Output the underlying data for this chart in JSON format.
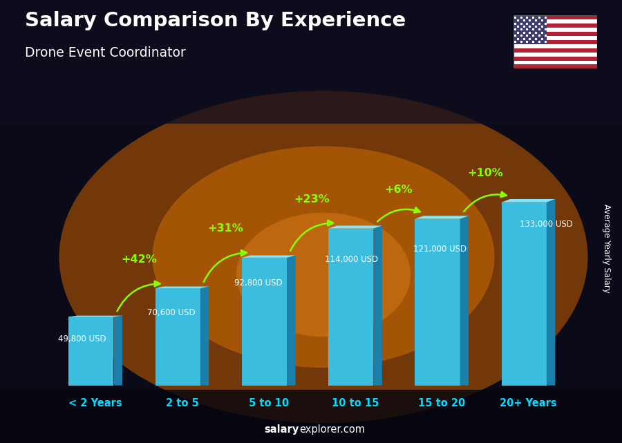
{
  "title": "Salary Comparison By Experience",
  "subtitle": "Drone Event Coordinator",
  "categories": [
    "< 2 Years",
    "2 to 5",
    "5 to 10",
    "10 to 15",
    "15 to 20",
    "20+ Years"
  ],
  "values": [
    49800,
    70600,
    92800,
    114000,
    121000,
    133000
  ],
  "labels": [
    "49,800 USD",
    "70,600 USD",
    "92,800 USD",
    "114,000 USD",
    "121,000 USD",
    "133,000 USD"
  ],
  "pct_changes": [
    "+42%",
    "+31%",
    "+23%",
    "+6%",
    "+10%"
  ],
  "bar_front_color": "#3BBDE0",
  "bar_top_color": "#7DE8FF",
  "bar_side_color": "#1A7FAA",
  "pct_color": "#88FF00",
  "arrow_color": "#88FF00",
  "title_color": "#FFFFFF",
  "subtitle_color": "#FFFFFF",
  "label_color": "#CCFFFF",
  "xlabel_color": "#00DDFF",
  "watermark_bold": "salary",
  "watermark_normal": "explorer.com",
  "ylabel_text": "Average Yearly Salary"
}
